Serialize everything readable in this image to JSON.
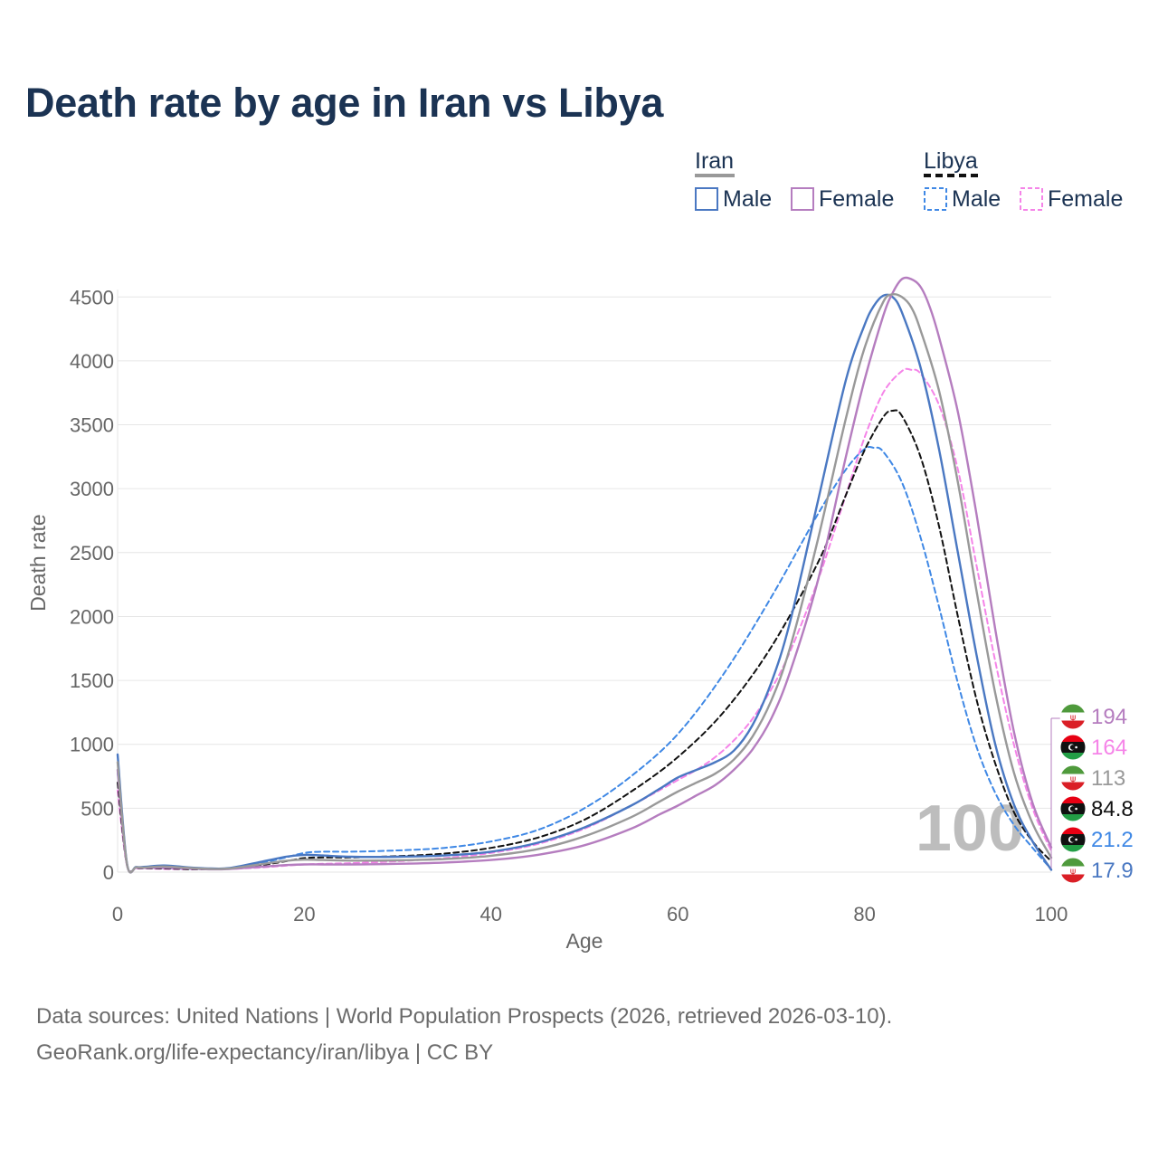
{
  "title": "Death rate by age in Iran vs Libya",
  "footer": {
    "line1": "Data sources: United Nations | World Population Prospects (2026, retrieved 2026-03-10).",
    "line2": "GeoRank.org/life-expectancy/iran/libya | CC BY"
  },
  "watermark": "100",
  "legend": {
    "groups": [
      {
        "name": "Iran",
        "style": "solid",
        "underline_color": "#999999",
        "items": [
          {
            "label": "Male",
            "color": "#4a78c2"
          },
          {
            "label": "Female",
            "color": "#b57dbf"
          }
        ]
      },
      {
        "name": "Libya",
        "style": "dashed",
        "underline_color": "#111111",
        "items": [
          {
            "label": "Male",
            "color": "#3f88e5"
          },
          {
            "label": "Female",
            "color": "#f584e8"
          }
        ]
      }
    ]
  },
  "end_labels": [
    {
      "text": "194",
      "color": "#b57dbf",
      "flag": "iran"
    },
    {
      "text": "164",
      "color": "#f584e8",
      "flag": "libya"
    },
    {
      "text": "113",
      "color": "#999999",
      "flag": "iran"
    },
    {
      "text": "84.8",
      "color": "#111111",
      "flag": "libya"
    },
    {
      "text": "21.2",
      "color": "#3f88e5",
      "flag": "libya"
    },
    {
      "text": "17.9",
      "color": "#4a78c2",
      "flag": "iran"
    }
  ],
  "chart_data": {
    "type": "line",
    "title": "Death rate by age in Iran vs Libya",
    "xlabel": "Age",
    "ylabel": "Death rate",
    "xlim": [
      0,
      100
    ],
    "ylim": [
      0,
      4700
    ],
    "xticks": [
      0,
      20,
      40,
      60,
      80,
      100
    ],
    "yticks": [
      0,
      500,
      1000,
      1500,
      2000,
      2500,
      3000,
      3500,
      4000,
      4500
    ],
    "grid": true,
    "legend_position": "top-right",
    "series": [
      {
        "name": "Libya Male",
        "country": "Libya",
        "sex": "Male",
        "color": "#3f88e5",
        "dash": true,
        "width": 2,
        "x": [
          0,
          1,
          2,
          3,
          5,
          8,
          10,
          12,
          15,
          18,
          20,
          22,
          25,
          30,
          35,
          40,
          45,
          50,
          55,
          60,
          65,
          70,
          75,
          78,
          80,
          81,
          82,
          84,
          86,
          88,
          90,
          92,
          94,
          96,
          98,
          100
        ],
        "y": [
          780,
          60,
          35,
          32,
          30,
          24,
          24,
          32,
          65,
          115,
          150,
          160,
          160,
          170,
          190,
          240,
          330,
          500,
          750,
          1080,
          1560,
          2150,
          2800,
          3150,
          3310,
          3320,
          3290,
          3050,
          2620,
          2070,
          1480,
          980,
          620,
          370,
          190,
          21.2
        ]
      },
      {
        "name": "Libya Female",
        "country": "Libya",
        "sex": "Female",
        "color": "#f584e8",
        "dash": true,
        "width": 2,
        "x": [
          0,
          1,
          2,
          3,
          5,
          8,
          10,
          12,
          15,
          18,
          20,
          22,
          25,
          30,
          35,
          40,
          45,
          50,
          55,
          60,
          62,
          64,
          66,
          68,
          70,
          72,
          75,
          78,
          80,
          82,
          84,
          85,
          86,
          88,
          90,
          92,
          94,
          96,
          98,
          100
        ],
        "y": [
          640,
          55,
          30,
          28,
          25,
          22,
          22,
          25,
          35,
          50,
          60,
          65,
          70,
          85,
          110,
          150,
          220,
          340,
          520,
          720,
          800,
          900,
          1030,
          1200,
          1430,
          1720,
          2280,
          2950,
          3400,
          3750,
          3920,
          3930,
          3900,
          3650,
          3150,
          2400,
          1650,
          1000,
          500,
          164
        ]
      },
      {
        "name": "Libya Total",
        "country": "Libya",
        "sex": "Total",
        "color": "#111111",
        "dash": true,
        "width": 2,
        "x": [
          0,
          1,
          2,
          3,
          5,
          8,
          10,
          12,
          15,
          18,
          20,
          22,
          25,
          30,
          35,
          40,
          45,
          50,
          55,
          60,
          65,
          70,
          75,
          78,
          80,
          82,
          83,
          84,
          86,
          88,
          90,
          92,
          94,
          96,
          98,
          100
        ],
        "y": [
          700,
          58,
          32,
          30,
          28,
          23,
          23,
          28,
          50,
          85,
          110,
          115,
          115,
          125,
          145,
          190,
          270,
          410,
          630,
          900,
          1260,
          1760,
          2420,
          2950,
          3300,
          3560,
          3610,
          3570,
          3250,
          2700,
          2000,
          1350,
          850,
          470,
          240,
          84.8
        ]
      },
      {
        "name": "Iran Male",
        "country": "Iran",
        "sex": "Male",
        "color": "#4a78c2",
        "dash": false,
        "width": 2.4,
        "x": [
          0,
          1,
          2,
          3,
          5,
          8,
          10,
          12,
          15,
          18,
          20,
          22,
          25,
          30,
          35,
          40,
          45,
          50,
          55,
          58,
          60,
          62,
          64,
          66,
          68,
          70,
          72,
          75,
          78,
          80,
          81,
          82,
          83,
          84,
          86,
          88,
          90,
          92,
          94,
          96,
          98,
          100
        ],
        "y": [
          920,
          70,
          40,
          42,
          52,
          35,
          28,
          32,
          75,
          120,
          135,
          130,
          120,
          120,
          130,
          160,
          230,
          350,
          520,
          650,
          740,
          800,
          860,
          950,
          1150,
          1480,
          1950,
          2900,
          3850,
          4280,
          4430,
          4510,
          4500,
          4380,
          3950,
          3300,
          2500,
          1700,
          1000,
          530,
          240,
          17.9
        ]
      },
      {
        "name": "Iran Female",
        "country": "Iran",
        "sex": "Female",
        "color": "#b57dbf",
        "dash": false,
        "width": 2.4,
        "x": [
          0,
          1,
          2,
          3,
          5,
          8,
          10,
          12,
          15,
          18,
          20,
          22,
          25,
          30,
          35,
          40,
          45,
          50,
          55,
          58,
          60,
          62,
          64,
          66,
          68,
          70,
          72,
          75,
          78,
          80,
          82,
          83,
          84,
          85,
          86,
          87,
          88,
          90,
          92,
          94,
          96,
          98,
          100
        ],
        "y": [
          800,
          60,
          35,
          33,
          35,
          28,
          22,
          25,
          40,
          55,
          60,
          60,
          60,
          65,
          75,
          95,
          135,
          210,
          340,
          450,
          520,
          600,
          680,
          800,
          960,
          1200,
          1560,
          2280,
          3250,
          3850,
          4350,
          4530,
          4640,
          4640,
          4580,
          4420,
          4180,
          3600,
          2800,
          1900,
          1100,
          540,
          194
        ]
      },
      {
        "name": "Iran Total",
        "country": "Iran",
        "sex": "Total",
        "color": "#999999",
        "dash": false,
        "width": 2.4,
        "x": [
          0,
          1,
          2,
          3,
          5,
          8,
          10,
          12,
          15,
          18,
          20,
          22,
          25,
          30,
          35,
          40,
          45,
          50,
          55,
          58,
          60,
          62,
          64,
          66,
          68,
          70,
          72,
          75,
          78,
          80,
          82,
          83,
          84,
          85,
          86,
          88,
          90,
          92,
          94,
          96,
          98,
          100
        ],
        "y": [
          860,
          65,
          38,
          37,
          44,
          31,
          25,
          28,
          58,
          88,
          98,
          95,
          90,
          92,
          102,
          128,
          180,
          280,
          430,
          550,
          630,
          700,
          770,
          880,
          1060,
          1340,
          1750,
          2600,
          3550,
          4100,
          4460,
          4520,
          4500,
          4420,
          4240,
          3760,
          3050,
          2200,
          1400,
          780,
          380,
          113
        ]
      }
    ]
  }
}
